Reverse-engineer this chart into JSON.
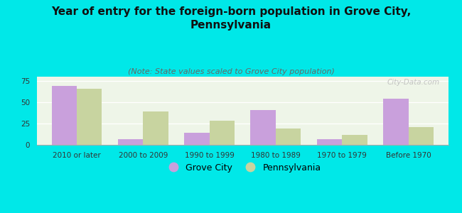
{
  "title": "Year of entry for the foreign-born population in Grove City,\nPennsylvania",
  "subtitle": "(Note: State values scaled to Grove City population)",
  "categories": [
    "2010 or later",
    "2000 to 2009",
    "1990 to 1999",
    "1980 to 1989",
    "1970 to 1979",
    "Before 1970"
  ],
  "grove_city": [
    69,
    7,
    14,
    41,
    7,
    54
  ],
  "pennsylvania": [
    66,
    39,
    28,
    19,
    12,
    21
  ],
  "grove_city_color": "#c9a0dc",
  "pennsylvania_color": "#c8d4a0",
  "background_color": "#00e8e8",
  "plot_bg_color": "#eef5e8",
  "ylim": [
    0,
    80
  ],
  "yticks": [
    0,
    25,
    50,
    75
  ],
  "bar_width": 0.38,
  "title_fontsize": 11,
  "subtitle_fontsize": 8,
  "tick_fontsize": 7.5,
  "legend_fontsize": 9,
  "watermark": "City-Data.com"
}
